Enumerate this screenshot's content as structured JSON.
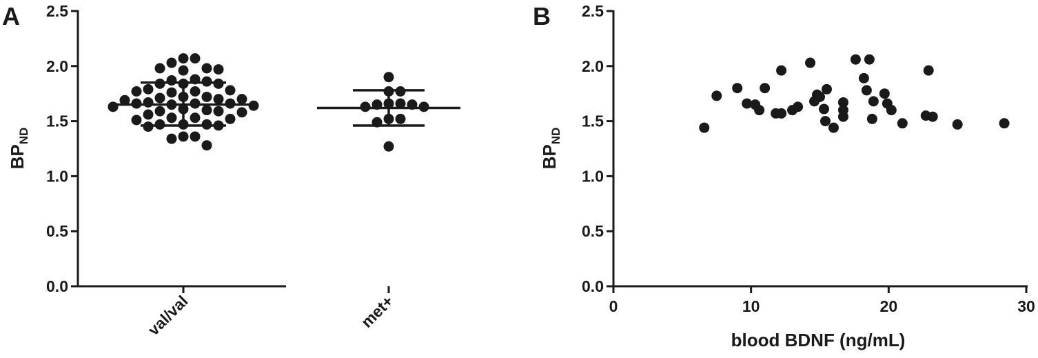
{
  "chart_data": [
    {
      "panel_label": "A",
      "type": "scatter",
      "xlabel": "",
      "ylabel": "BP",
      "ylabel_subscript": "ND",
      "categories": [
        "val/val",
        "met+"
      ],
      "ylim": [
        0,
        2.5
      ],
      "yticks": [
        "0.0",
        "0.5",
        "1.0",
        "1.5",
        "2.0",
        "2.5"
      ],
      "grid": false,
      "summary": [
        {
          "category": "val/val",
          "mean": 1.65,
          "upper": 1.85,
          "lower": 1.46
        },
        {
          "category": "met+",
          "mean": 1.62,
          "upper": 1.78,
          "lower": 1.46
        }
      ],
      "series": [
        {
          "category": "val/val",
          "values": [
            2.07,
            2.07,
            2.03,
            1.98,
            1.98,
            1.97,
            1.96,
            1.88,
            1.87,
            1.86,
            1.84,
            1.84,
            1.84,
            1.79,
            1.78,
            1.77,
            1.77,
            1.76,
            1.72,
            1.72,
            1.71,
            1.7,
            1.7,
            1.69,
            1.67,
            1.66,
            1.66,
            1.66,
            1.65,
            1.64,
            1.63,
            1.61,
            1.6,
            1.59,
            1.59,
            1.58,
            1.56,
            1.53,
            1.53,
            1.52,
            1.51,
            1.47,
            1.47,
            1.47,
            1.46,
            1.45,
            1.36,
            1.36,
            1.34,
            1.28
          ]
        },
        {
          "category": "met+",
          "values": [
            1.9,
            1.77,
            1.77,
            1.66,
            1.66,
            1.65,
            1.65,
            1.63,
            1.63,
            1.52,
            1.52,
            1.49,
            1.27
          ]
        }
      ]
    },
    {
      "panel_label": "B",
      "type": "scatter",
      "xlabel": "blood BDNF (ng/mL)",
      "ylabel": "BP",
      "ylabel_subscript": "ND",
      "xlim": [
        0,
        30
      ],
      "ylim": [
        0,
        2.5
      ],
      "xticks": [
        "0",
        "10",
        "20",
        "30"
      ],
      "yticks": [
        "0.0",
        "0.5",
        "1.0",
        "1.5",
        "2.0",
        "2.5"
      ],
      "grid": false,
      "points": [
        [
          6.6,
          1.44
        ],
        [
          7.5,
          1.73
        ],
        [
          9.0,
          1.8
        ],
        [
          9.7,
          1.66
        ],
        [
          10.3,
          1.65
        ],
        [
          10.6,
          1.6
        ],
        [
          11.0,
          1.8
        ],
        [
          11.8,
          1.57
        ],
        [
          12.2,
          1.57
        ],
        [
          12.2,
          1.96
        ],
        [
          13.0,
          1.6
        ],
        [
          13.4,
          1.63
        ],
        [
          14.3,
          2.03
        ],
        [
          14.6,
          1.68
        ],
        [
          14.8,
          1.74
        ],
        [
          15.0,
          1.72
        ],
        [
          15.3,
          1.61
        ],
        [
          15.4,
          1.5
        ],
        [
          15.5,
          1.79
        ],
        [
          16.0,
          1.44
        ],
        [
          16.7,
          1.67
        ],
        [
          16.7,
          1.6
        ],
        [
          16.7,
          1.54
        ],
        [
          17.6,
          2.06
        ],
        [
          18.2,
          1.89
        ],
        [
          18.4,
          1.78
        ],
        [
          18.6,
          2.06
        ],
        [
          18.8,
          1.52
        ],
        [
          18.9,
          1.68
        ],
        [
          19.7,
          1.75
        ],
        [
          19.9,
          1.66
        ],
        [
          20.2,
          1.6
        ],
        [
          21.0,
          1.48
        ],
        [
          22.7,
          1.55
        ],
        [
          22.9,
          1.96
        ],
        [
          23.2,
          1.54
        ],
        [
          25.0,
          1.47
        ],
        [
          28.4,
          1.48
        ]
      ]
    }
  ]
}
